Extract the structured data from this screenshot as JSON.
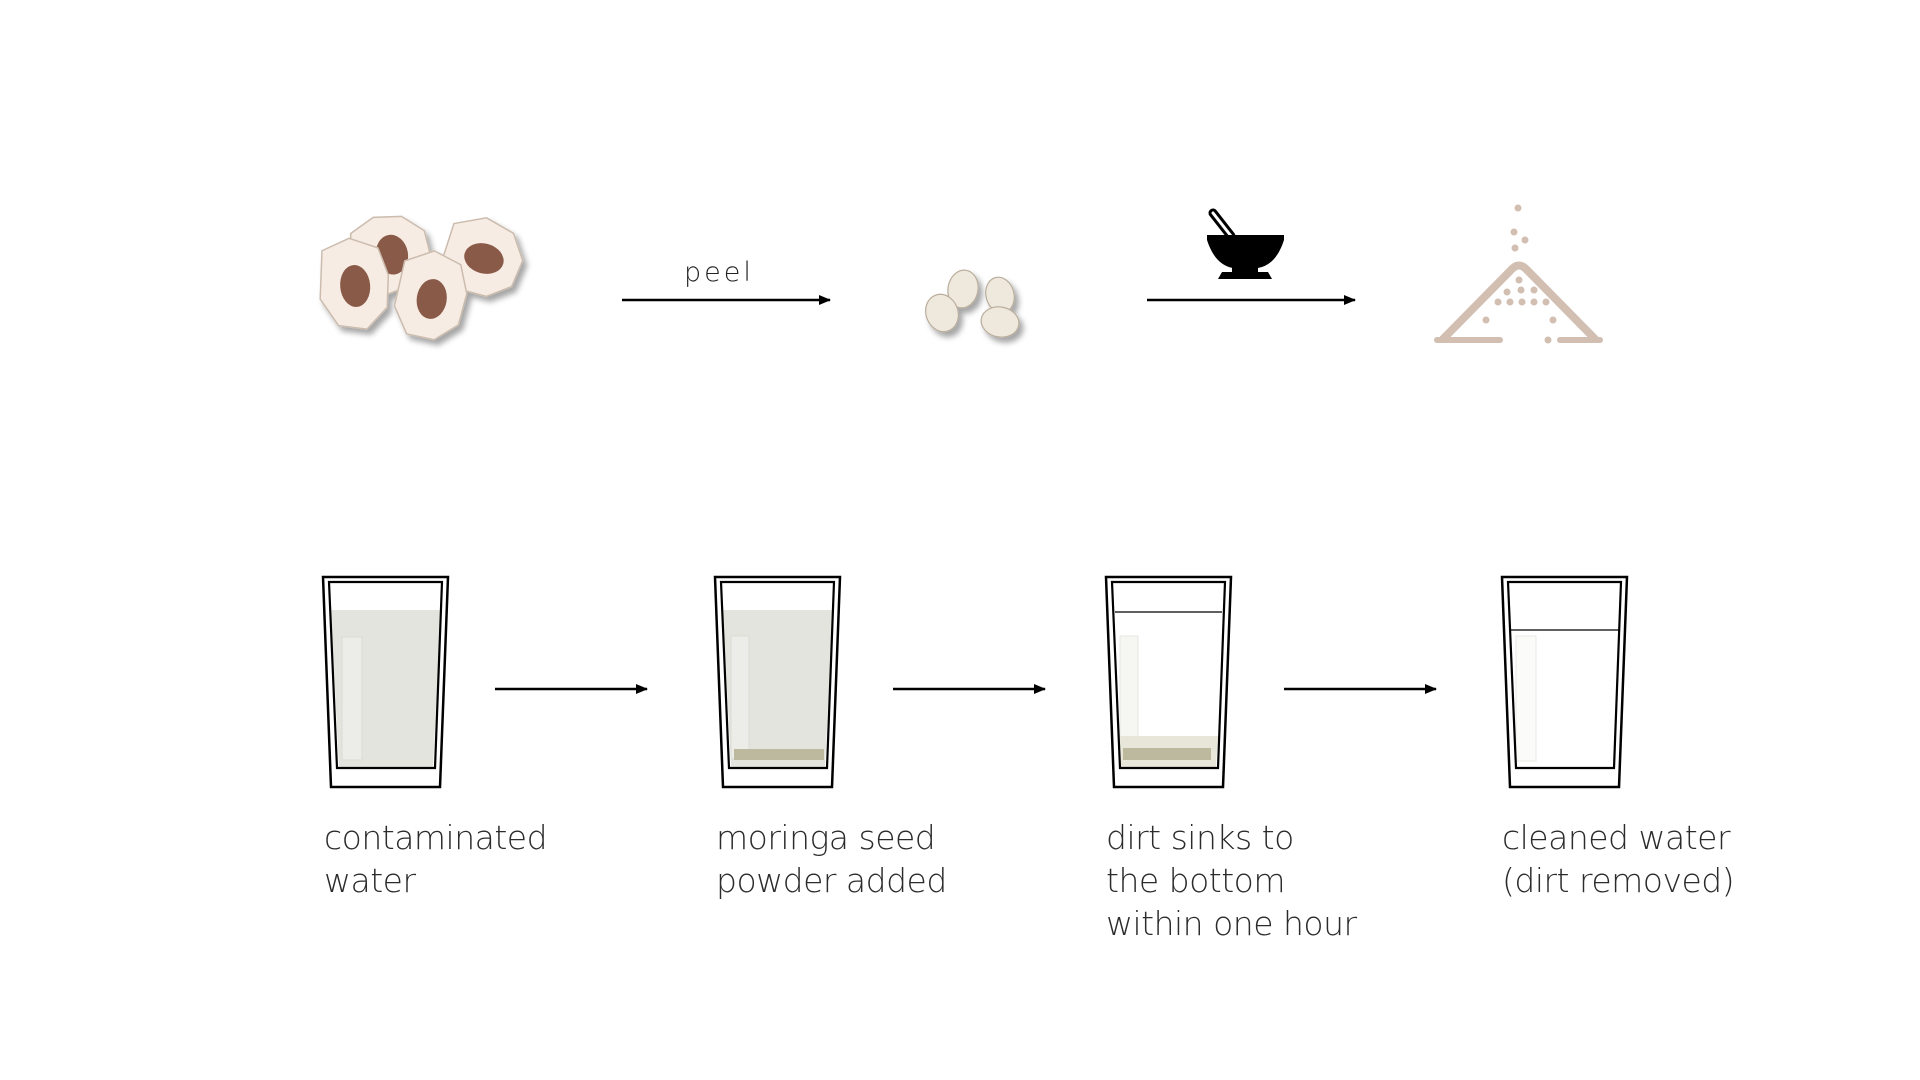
{
  "process": {
    "steps": [
      {
        "icon": "moringa-seed-pods-icon"
      },
      {
        "arrow_label": "peel"
      },
      {
        "icon": "peeled-seeds-icon"
      },
      {
        "arrow_icon": "mortar-and-pestle-icon"
      },
      {
        "icon": "seed-powder-icon"
      }
    ]
  },
  "glasses": [
    {
      "icon": "contaminated-glass-icon",
      "caption": [
        "contaminated",
        "water"
      ]
    },
    {
      "icon": "glass-with-powder-icon",
      "caption": [
        "moringa seed",
        "powder added"
      ]
    },
    {
      "icon": "glass-with-sediment-icon",
      "caption": [
        "dirt sinks to",
        "the bottom",
        "within one hour"
      ]
    },
    {
      "icon": "clean-glass-icon",
      "caption": [
        "cleaned water",
        "(dirt removed)"
      ]
    }
  ],
  "colors": {
    "pod": "#f7ece3",
    "seed": "#8a5a48",
    "peeled_seed": "#efe8dc",
    "powder": "#d2bfb2",
    "dirty_water": "#e3e4de",
    "sediment": "#bdb99f"
  }
}
